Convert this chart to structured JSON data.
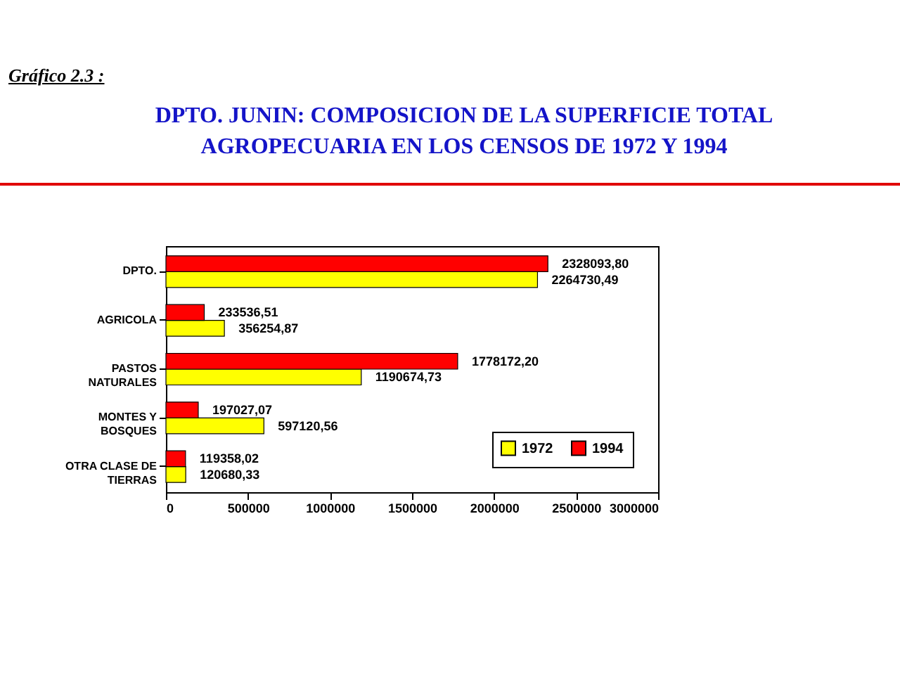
{
  "chart_data": {
    "type": "bar",
    "orientation": "horizontal",
    "title": "DPTO. JUNIN: COMPOSICION DE LA SUPERFICIE TOTAL AGROPECUARIA EN LOS CENSOS DE 1972 Y 1994",
    "annotations": [
      "Gráfico 2.3 :"
    ],
    "categories": [
      "DPTO.",
      "AGRICOLA",
      "PASTOS NATURALES",
      "MONTES Y BOSQUES",
      "OTRA CLASE DE TIERRAS"
    ],
    "series": [
      {
        "name": "1972",
        "color": "#ffff00",
        "values": [
          2264730.49,
          356254.87,
          1190674.73,
          597120.56,
          120680.33
        ],
        "value_labels": [
          "2264730,49",
          "356254,87",
          "1190674,73",
          "597120,56",
          "120680,33"
        ]
      },
      {
        "name": "1994",
        "color": "#ff0000",
        "values": [
          2328093.8,
          233536.51,
          1778172.2,
          197027.07,
          119358.02
        ],
        "value_labels": [
          "2328093,80",
          "233536,51",
          "1778172,20",
          "197027,07",
          "119358,02"
        ]
      }
    ],
    "xlim": [
      0,
      3000000
    ],
    "xticks": [
      0,
      500000,
      1000000,
      1500000,
      2000000,
      2500000,
      3000000
    ],
    "grid": false,
    "legend": "bottom right"
  }
}
